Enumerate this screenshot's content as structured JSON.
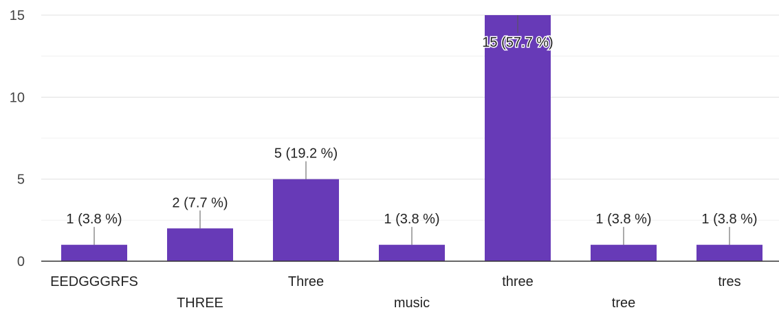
{
  "chart_data": {
    "type": "bar",
    "categories": [
      "EEDGGGRFS",
      "THREE",
      "Three",
      "music",
      "three",
      "tree",
      "tres"
    ],
    "values": [
      1,
      2,
      5,
      1,
      15,
      1,
      1
    ],
    "data_labels": [
      "1 (3.8 %)",
      "2 (7.7 %)",
      "5 (19.2 %)",
      "1 (3.8 %)",
      "15 (57.7 %)",
      "1 (3.8 %)",
      "1 (3.8 %)"
    ],
    "yticks": [
      0,
      5,
      10,
      15
    ],
    "ylim": [
      0,
      15
    ],
    "grid": true,
    "legend": "none",
    "title": "",
    "xlabel": "",
    "ylabel": ""
  },
  "colors": {
    "bar": "#673ab7",
    "grid": "#e0e0e0",
    "axis": "#333333",
    "leader": "#555555"
  }
}
